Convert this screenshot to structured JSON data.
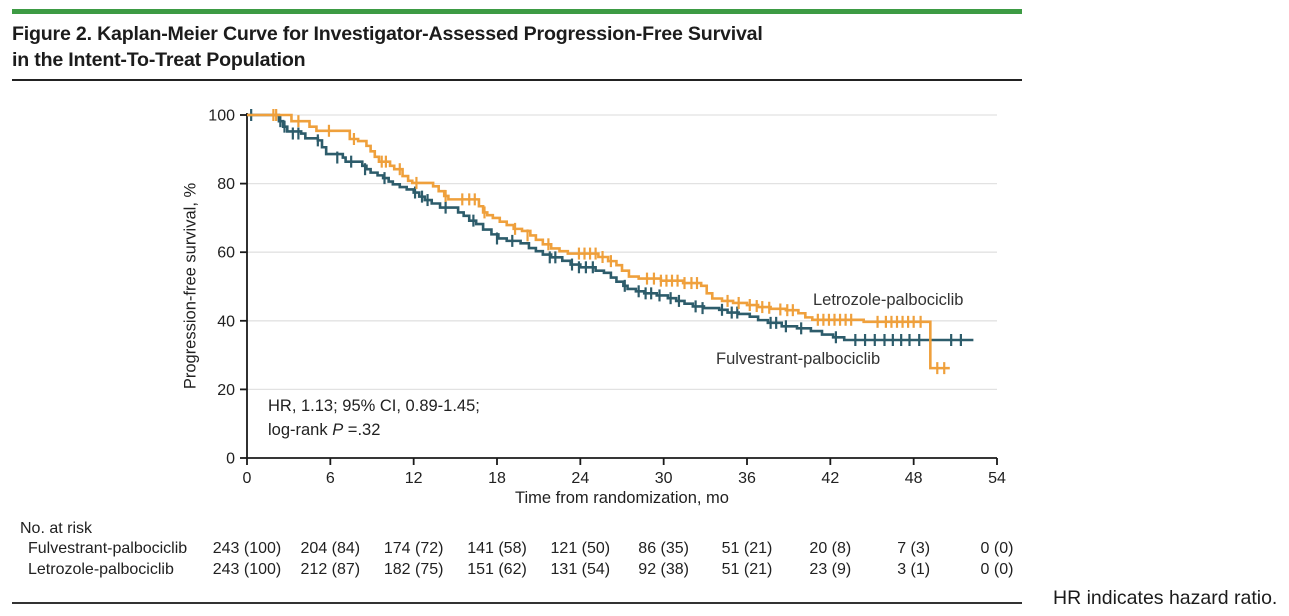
{
  "figure": {
    "title_line1": "Figure 2. Kaplan-Meier Curve for Investigator-Assessed Progression-Free Survival",
    "title_line2": "in the Intent-To-Treat Population",
    "footnote": "HR indicates hazard ratio."
  },
  "annotation": {
    "line1": "HR, 1.13; 95% CI, 0.89-1.45;",
    "line2_prefix": "log-rank ",
    "line2_italic": "P",
    "line2_suffix": " =.32"
  },
  "colors": {
    "letrozole": "#EFA03C",
    "fulvestrant": "#2D5C6B",
    "accent_green": "#3D9B44",
    "grid": "#E2E2E2",
    "axis": "#1A1A1A",
    "text": "#212121"
  },
  "chart_data": {
    "type": "line",
    "subtype": "kaplan-meier-step",
    "xlabel": "Time from randomization, mo",
    "ylabel": "Progression-free survival, %",
    "xlim": [
      0,
      54
    ],
    "ylim": [
      0,
      100
    ],
    "xticks": [
      0,
      6,
      12,
      18,
      24,
      30,
      36,
      42,
      48,
      54
    ],
    "yticks": [
      0,
      20,
      40,
      60,
      80,
      100
    ],
    "grid": "horizontal",
    "series": [
      {
        "name": "Fulvestrant-palbociclib",
        "color": "#2D5C6B",
        "end_time": 52.3,
        "steps": [
          [
            0,
            100
          ],
          [
            2.3,
            98.2
          ],
          [
            2.6,
            96.6
          ],
          [
            2.9,
            95.2
          ],
          [
            3.9,
            94.6
          ],
          [
            4.2,
            93.2
          ],
          [
            5.1,
            92.6
          ],
          [
            5.4,
            90.6
          ],
          [
            5.7,
            88.6
          ],
          [
            6.9,
            87.6
          ],
          [
            7.1,
            86.4
          ],
          [
            8.3,
            85.2
          ],
          [
            8.6,
            84.2
          ],
          [
            8.9,
            83.2
          ],
          [
            9.4,
            82.4
          ],
          [
            9.8,
            81.6
          ],
          [
            10.2,
            80.6
          ],
          [
            10.5,
            79.8
          ],
          [
            11.0,
            79.0
          ],
          [
            11.5,
            78.3
          ],
          [
            12.0,
            77.4
          ],
          [
            12.4,
            76.2
          ],
          [
            12.8,
            75.2
          ],
          [
            13.3,
            74.2
          ],
          [
            13.9,
            73.0
          ],
          [
            15.2,
            71.6
          ],
          [
            15.6,
            70.6
          ],
          [
            16.0,
            69.2
          ],
          [
            16.5,
            68.2
          ],
          [
            17.0,
            66.6
          ],
          [
            17.6,
            65.2
          ],
          [
            18.1,
            64.0
          ],
          [
            18.7,
            63.3
          ],
          [
            19.7,
            62.6
          ],
          [
            20.3,
            61.2
          ],
          [
            20.8,
            60.3
          ],
          [
            21.3,
            59.3
          ],
          [
            21.9,
            58.5
          ],
          [
            22.7,
            57.5
          ],
          [
            23.3,
            56.4
          ],
          [
            24.0,
            55.6
          ],
          [
            25.1,
            54.6
          ],
          [
            25.7,
            54.0
          ],
          [
            26.2,
            52.6
          ],
          [
            26.6,
            51.4
          ],
          [
            27.1,
            50.2
          ],
          [
            27.4,
            49.3
          ],
          [
            28.0,
            48.6
          ],
          [
            28.6,
            48.0
          ],
          [
            29.5,
            47.4
          ],
          [
            30.3,
            46.6
          ],
          [
            30.9,
            45.8
          ],
          [
            31.5,
            45.0
          ],
          [
            32.1,
            44.2
          ],
          [
            32.9,
            43.7
          ],
          [
            34.0,
            43.2
          ],
          [
            34.6,
            42.4
          ],
          [
            35.4,
            42.0
          ],
          [
            36.2,
            41.2
          ],
          [
            36.8,
            40.2
          ],
          [
            37.5,
            39.4
          ],
          [
            38.5,
            38.4
          ],
          [
            39.6,
            37.8
          ],
          [
            40.6,
            37.0
          ],
          [
            41.4,
            36.0
          ],
          [
            42.2,
            35.2
          ],
          [
            43.0,
            34.4
          ]
        ],
        "censors": [
          [
            0.3,
            100
          ],
          [
            2.4,
            98.2
          ],
          [
            2.7,
            96.6
          ],
          [
            3.3,
            94.6
          ],
          [
            3.7,
            94.6
          ],
          [
            5.1,
            92.6
          ],
          [
            6.5,
            87.6
          ],
          [
            7.5,
            86.4
          ],
          [
            8.5,
            84.2
          ],
          [
            9.9,
            81.6
          ],
          [
            12.1,
            77.4
          ],
          [
            12.6,
            76.2
          ],
          [
            13.0,
            75.2
          ],
          [
            14.3,
            73.0
          ],
          [
            16.3,
            69.2
          ],
          [
            18.0,
            64.0
          ],
          [
            19.1,
            63.3
          ],
          [
            21.8,
            58.5
          ],
          [
            22.2,
            58.5
          ],
          [
            23.4,
            56.4
          ],
          [
            23.9,
            55.6
          ],
          [
            24.4,
            55.6
          ],
          [
            24.9,
            55.6
          ],
          [
            27.2,
            50.2
          ],
          [
            28.2,
            48.6
          ],
          [
            28.7,
            48.0
          ],
          [
            29.1,
            48.0
          ],
          [
            29.7,
            47.4
          ],
          [
            30.5,
            46.6
          ],
          [
            31.1,
            45.8
          ],
          [
            32.3,
            44.2
          ],
          [
            32.8,
            43.7
          ],
          [
            34.2,
            43.2
          ],
          [
            34.9,
            42.4
          ],
          [
            35.3,
            42.4
          ],
          [
            37.7,
            39.4
          ],
          [
            38.1,
            39.4
          ],
          [
            38.8,
            38.4
          ],
          [
            39.9,
            37.8
          ],
          [
            42.4,
            35.2
          ],
          [
            43.8,
            34.4
          ],
          [
            44.5,
            34.4
          ],
          [
            45.2,
            34.4
          ],
          [
            45.9,
            34.4
          ],
          [
            46.5,
            34.4
          ],
          [
            47.1,
            34.4
          ],
          [
            47.7,
            34.4
          ],
          [
            48.4,
            34.4
          ],
          [
            50.7,
            34.4
          ],
          [
            51.4,
            34.4
          ]
        ]
      },
      {
        "name": "Letrozole-palbociclib",
        "color": "#EFA03C",
        "end_time": 50.6,
        "steps": [
          [
            0,
            100
          ],
          [
            3.2,
            98.2
          ],
          [
            4.5,
            96.6
          ],
          [
            5.0,
            95.4
          ],
          [
            7.4,
            93.0
          ],
          [
            8.0,
            92.4
          ],
          [
            8.6,
            91.0
          ],
          [
            8.9,
            89.4
          ],
          [
            9.2,
            87.8
          ],
          [
            9.5,
            86.4
          ],
          [
            10.3,
            85.2
          ],
          [
            10.6,
            84.2
          ],
          [
            11.2,
            82.2
          ],
          [
            11.6,
            80.8
          ],
          [
            11.9,
            80.2
          ],
          [
            13.4,
            79.2
          ],
          [
            13.8,
            77.8
          ],
          [
            14.2,
            76.4
          ],
          [
            14.5,
            75.4
          ],
          [
            16.7,
            73.4
          ],
          [
            17.0,
            71.6
          ],
          [
            17.3,
            70.8
          ],
          [
            17.7,
            70.0
          ],
          [
            18.2,
            68.9
          ],
          [
            18.7,
            67.9
          ],
          [
            19.2,
            66.8
          ],
          [
            19.8,
            66.2
          ],
          [
            20.4,
            64.9
          ],
          [
            20.8,
            63.6
          ],
          [
            21.3,
            62.3
          ],
          [
            21.9,
            61.1
          ],
          [
            22.5,
            60.3
          ],
          [
            23.1,
            59.6
          ],
          [
            25.3,
            58.6
          ],
          [
            26.0,
            57.4
          ],
          [
            26.6,
            56.2
          ],
          [
            27.0,
            54.6
          ],
          [
            27.5,
            52.9
          ],
          [
            28.2,
            52.3
          ],
          [
            29.8,
            51.7
          ],
          [
            31.4,
            51.0
          ],
          [
            32.7,
            50.2
          ],
          [
            33.1,
            48.0
          ],
          [
            33.5,
            46.5
          ],
          [
            34.2,
            45.8
          ],
          [
            35.0,
            45.2
          ],
          [
            36.0,
            44.6
          ],
          [
            36.8,
            44.0
          ],
          [
            37.7,
            43.5
          ],
          [
            38.8,
            43.1
          ],
          [
            39.7,
            42.2
          ],
          [
            40.2,
            41.0
          ],
          [
            40.7,
            40.3
          ],
          [
            44.4,
            39.7
          ],
          [
            49.2,
            26.2
          ]
        ],
        "censors": [
          [
            1.9,
            100
          ],
          [
            2.1,
            100
          ],
          [
            3.7,
            98.2
          ],
          [
            5.9,
            95.4
          ],
          [
            7.7,
            93.0
          ],
          [
            9.7,
            86.4
          ],
          [
            10.0,
            86.4
          ],
          [
            11.0,
            84.2
          ],
          [
            12.2,
            80.2
          ],
          [
            14.3,
            76.4
          ],
          [
            15.5,
            75.4
          ],
          [
            16.0,
            75.4
          ],
          [
            16.4,
            75.4
          ],
          [
            17.1,
            71.6
          ],
          [
            19.3,
            66.8
          ],
          [
            20.2,
            64.9
          ],
          [
            21.7,
            62.3
          ],
          [
            23.9,
            59.6
          ],
          [
            24.3,
            59.6
          ],
          [
            24.7,
            59.6
          ],
          [
            25.1,
            59.6
          ],
          [
            25.6,
            58.6
          ],
          [
            26.2,
            57.4
          ],
          [
            28.8,
            52.3
          ],
          [
            29.3,
            52.3
          ],
          [
            29.8,
            51.7
          ],
          [
            30.2,
            51.7
          ],
          [
            30.6,
            51.7
          ],
          [
            31.0,
            51.7
          ],
          [
            31.5,
            51.0
          ],
          [
            32.0,
            51.0
          ],
          [
            32.4,
            51.0
          ],
          [
            34.6,
            45.8
          ],
          [
            35.4,
            45.2
          ],
          [
            36.2,
            44.6
          ],
          [
            36.7,
            44.3
          ],
          [
            37.1,
            44.0
          ],
          [
            37.6,
            43.8
          ],
          [
            38.4,
            43.3
          ],
          [
            38.9,
            43.1
          ],
          [
            39.3,
            43.1
          ],
          [
            41.1,
            40.3
          ],
          [
            41.5,
            40.3
          ],
          [
            41.9,
            40.3
          ],
          [
            42.3,
            40.3
          ],
          [
            42.7,
            40.3
          ],
          [
            43.1,
            40.3
          ],
          [
            43.5,
            40.3
          ],
          [
            45.4,
            39.7
          ],
          [
            46.0,
            39.7
          ],
          [
            46.4,
            39.7
          ],
          [
            46.8,
            39.7
          ],
          [
            47.2,
            39.7
          ],
          [
            47.6,
            39.7
          ],
          [
            48.0,
            39.7
          ],
          [
            48.5,
            39.7
          ],
          [
            49.7,
            26.2
          ],
          [
            50.2,
            26.2
          ]
        ]
      }
    ],
    "risk_table": {
      "title": "No. at risk",
      "times": [
        0,
        6,
        12,
        18,
        24,
        30,
        36,
        42,
        48,
        54
      ],
      "rows": [
        {
          "name": "Fulvestrant-palbociclib",
          "values": [
            "243 (100)",
            "204 (84)",
            "174 (72)",
            "141 (58)",
            "121 (50)",
            "86 (35)",
            "51 (21)",
            "20 (8)",
            "7 (3)",
            "0 (0)"
          ]
        },
        {
          "name": "Letrozole-palbociclib",
          "values": [
            "243 (100)",
            "212 (87)",
            "182 (75)",
            "151 (62)",
            "131 (54)",
            "92 (38)",
            "51 (21)",
            "23 (9)",
            "3 (1)",
            "0 (0)"
          ]
        }
      ]
    }
  }
}
